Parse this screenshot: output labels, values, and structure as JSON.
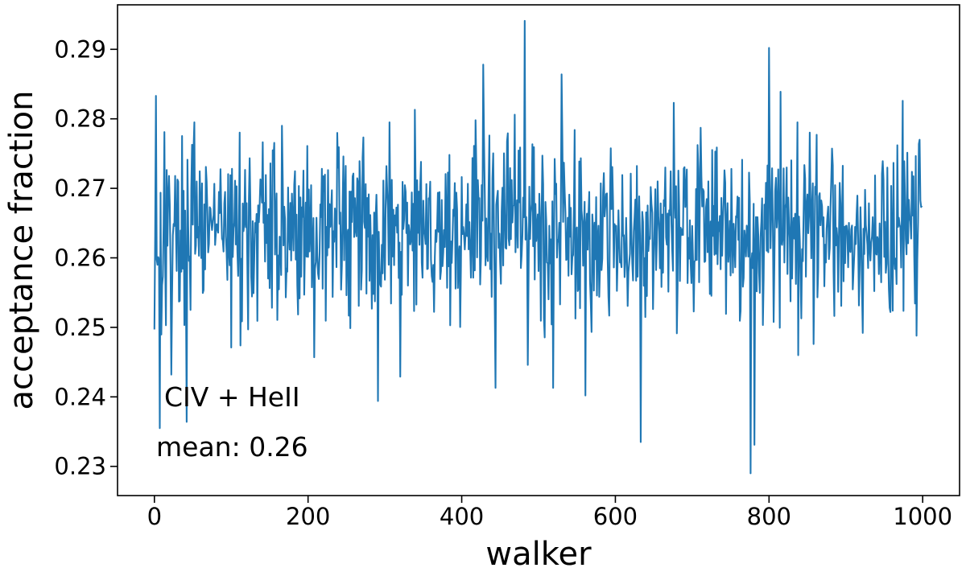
{
  "chart_data": {
    "type": "line",
    "title": "",
    "xlabel": "walker",
    "ylabel": "acceptance fraction",
    "xlim": [
      -48,
      1048
    ],
    "ylim": [
      0.2258,
      0.2964
    ],
    "xticks": [
      0,
      200,
      400,
      600,
      800,
      1000
    ],
    "yticks": [
      0.23,
      0.24,
      0.25,
      0.26,
      0.27,
      0.28,
      0.29
    ],
    "ytick_labels": [
      "0.23",
      "0.24",
      "0.25",
      "0.26",
      "0.27",
      "0.28",
      "0.29"
    ],
    "grid": false,
    "annotations": [
      "CIV + HeII",
      "mean: 0.26"
    ],
    "series": [
      {
        "color": "#1f77b4",
        "n_points": 1000,
        "x_start": 0,
        "x_step": 1,
        "base_value": 0.264,
        "spread": 0.0105,
        "seed": 17,
        "anchors": [
          [
            0,
            0.2497
          ],
          [
            2,
            0.2833
          ],
          [
            4,
            0.259
          ],
          [
            7,
            0.2355
          ],
          [
            13,
            0.2781
          ],
          [
            22,
            0.2432
          ],
          [
            42,
            0.2364
          ],
          [
            100,
            0.2471
          ],
          [
            166,
            0.279
          ],
          [
            208,
            0.2457
          ],
          [
            291,
            0.2394
          ],
          [
            320,
            0.2429
          ],
          [
            339,
            0.2813
          ],
          [
            418,
            0.2798
          ],
          [
            428,
            0.2878
          ],
          [
            444,
            0.2413
          ],
          [
            469,
            0.2806
          ],
          [
            482,
            0.2941
          ],
          [
            486,
            0.2446
          ],
          [
            519,
            0.2413
          ],
          [
            530,
            0.2864
          ],
          [
            561,
            0.2402
          ],
          [
            633,
            0.2335
          ],
          [
            676,
            0.2823
          ],
          [
            776,
            0.229
          ],
          [
            781,
            0.2331
          ],
          [
            800,
            0.2902
          ],
          [
            815,
            0.2839
          ],
          [
            858,
            0.2476
          ],
          [
            922,
            0.2492
          ],
          [
            974,
            0.2826
          ],
          [
            992,
            0.2488
          ],
          [
            998,
            0.2673
          ]
        ]
      }
    ]
  }
}
